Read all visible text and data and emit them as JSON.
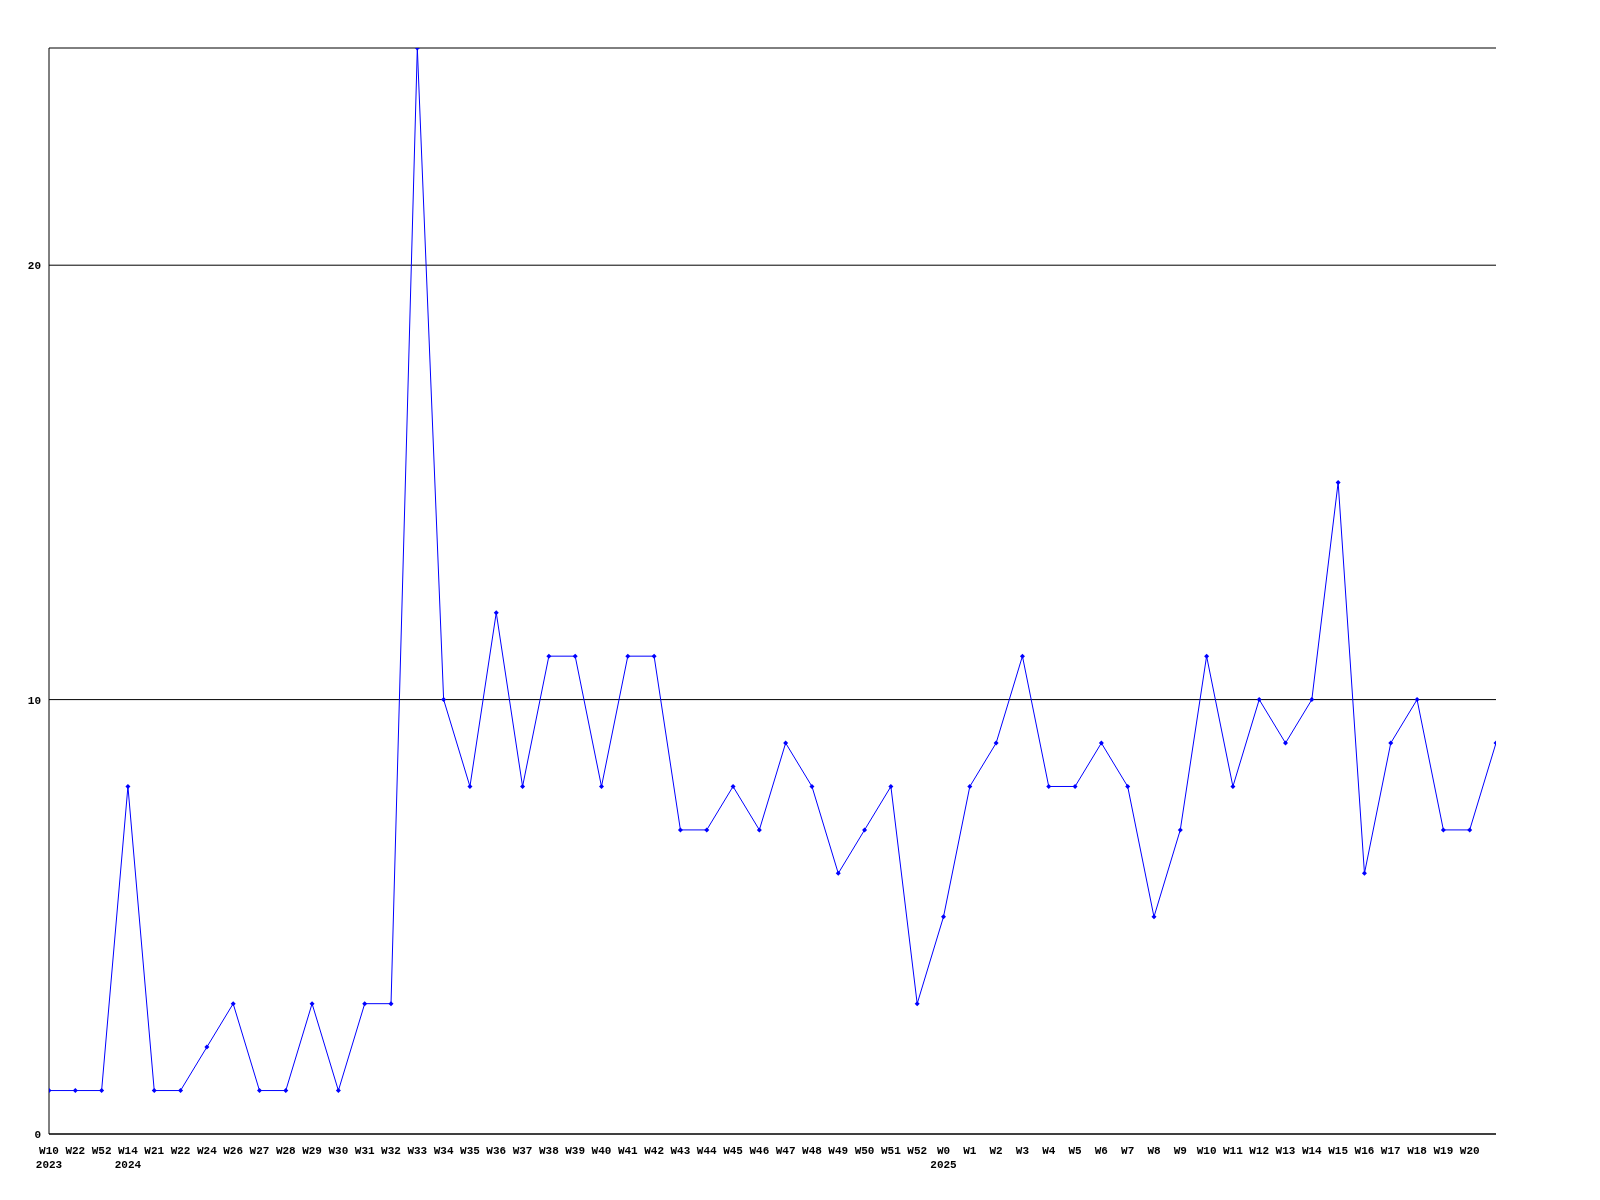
{
  "chart_data": {
    "type": "line",
    "categories": [
      "W10\n2023",
      "W22",
      "W52",
      "W14\n2024",
      "W21",
      "W22",
      "W24",
      "W26",
      "W27",
      "W28",
      "W29",
      "W30",
      "W31",
      "W32",
      "W33",
      "W34",
      "W35",
      "W36",
      "W37",
      "W38",
      "W39",
      "W40",
      "W41",
      "W42",
      "W43",
      "W44",
      "W45",
      "W46",
      "W47",
      "W48",
      "W49",
      "W50",
      "W51",
      "W52",
      "W0\n2025",
      "W1",
      "W2",
      "W3",
      "W4",
      "W5",
      "W6",
      "W7",
      "W8",
      "W9",
      "W10",
      "W11",
      "W12",
      "W13",
      "W14",
      "W15",
      "W16",
      "W17",
      "W18",
      "W19",
      "W20",
      null
    ],
    "series": [
      {
        "color": "#0000ff",
        "values": [
          1,
          1,
          1,
          8,
          1,
          1,
          2,
          3,
          1,
          1,
          3,
          1,
          3,
          3,
          25,
          10,
          8,
          12,
          8,
          11,
          11,
          8,
          11,
          11,
          7,
          7,
          8,
          7,
          9,
          8,
          6,
          7,
          8,
          3,
          5,
          8,
          9,
          11,
          8,
          8,
          9,
          8,
          5,
          7,
          11,
          8,
          10,
          9,
          10,
          15,
          6,
          9,
          10,
          7,
          7,
          9
        ]
      }
    ],
    "ylim": [
      0,
      25
    ],
    "yticks": [
      0,
      10,
      20
    ],
    "grid": "y",
    "marker": "diamond",
    "line_style": "solid",
    "legend": false
  }
}
